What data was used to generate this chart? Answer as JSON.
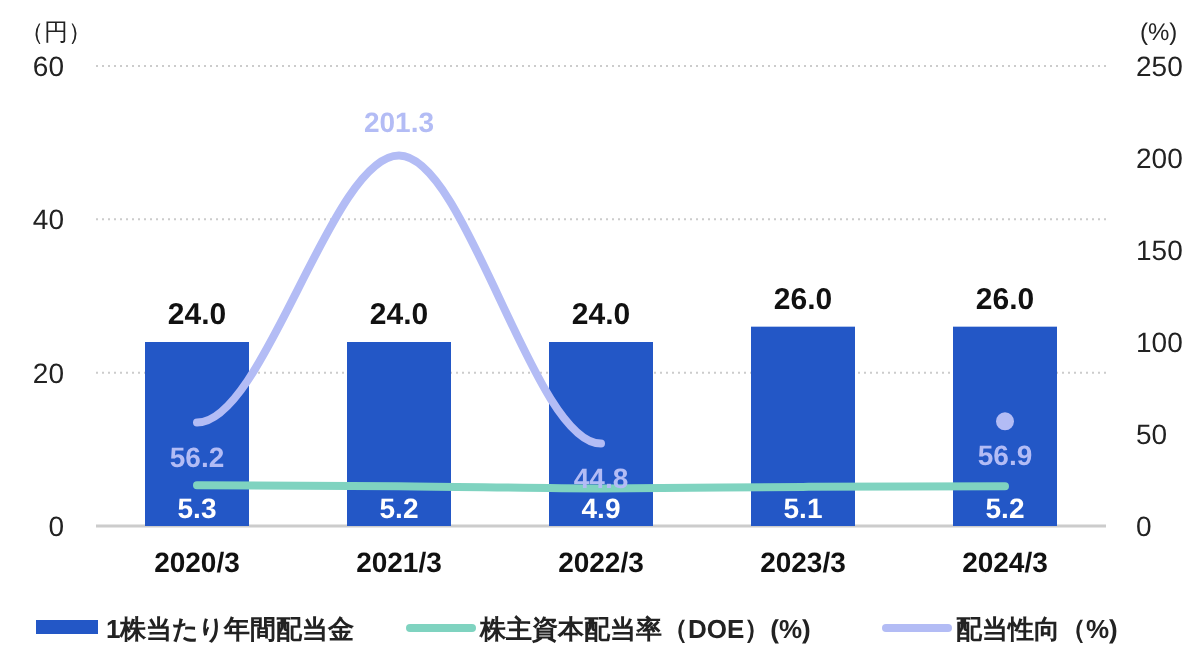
{
  "chart_data": {
    "type": "bar",
    "categories": [
      "2020/3",
      "2021/3",
      "2022/3",
      "2023/3",
      "2024/3"
    ],
    "ylabel": "（円）",
    "y2label": "(%)",
    "ylim": [
      0,
      60
    ],
    "yticks": [
      0,
      20,
      40,
      60
    ],
    "y2lim": [
      0,
      250
    ],
    "y2ticks": [
      0,
      50,
      100,
      150,
      200,
      250
    ],
    "grid": "y",
    "legend": "bottom",
    "series": [
      {
        "name": "1株当たり年間配当金",
        "color": "#2357c6",
        "values": [
          24.0,
          24.0,
          24.0,
          26.0,
          26.0
        ],
        "value_labels": [
          "24.0",
          "24.0",
          "24.0",
          "26.0",
          "26.0"
        ]
      },
      {
        "name": "株主資本配当率（DOE）(%)",
        "type": "line",
        "color": "#7fd3c0",
        "values": [
          5.3,
          5.2,
          4.9,
          5.1,
          5.2
        ],
        "value_labels": [
          "5.3",
          "5.2",
          "4.9",
          "5.1",
          "5.2"
        ]
      },
      {
        "name": "配当性向（%)",
        "type": "line",
        "axis": "y2",
        "color": "#b3bcf5",
        "values": [
          56.2,
          201.3,
          44.8,
          null,
          56.9
        ],
        "value_labels": [
          "56.2",
          "201.3",
          "44.8",
          null,
          "56.9"
        ]
      }
    ]
  }
}
